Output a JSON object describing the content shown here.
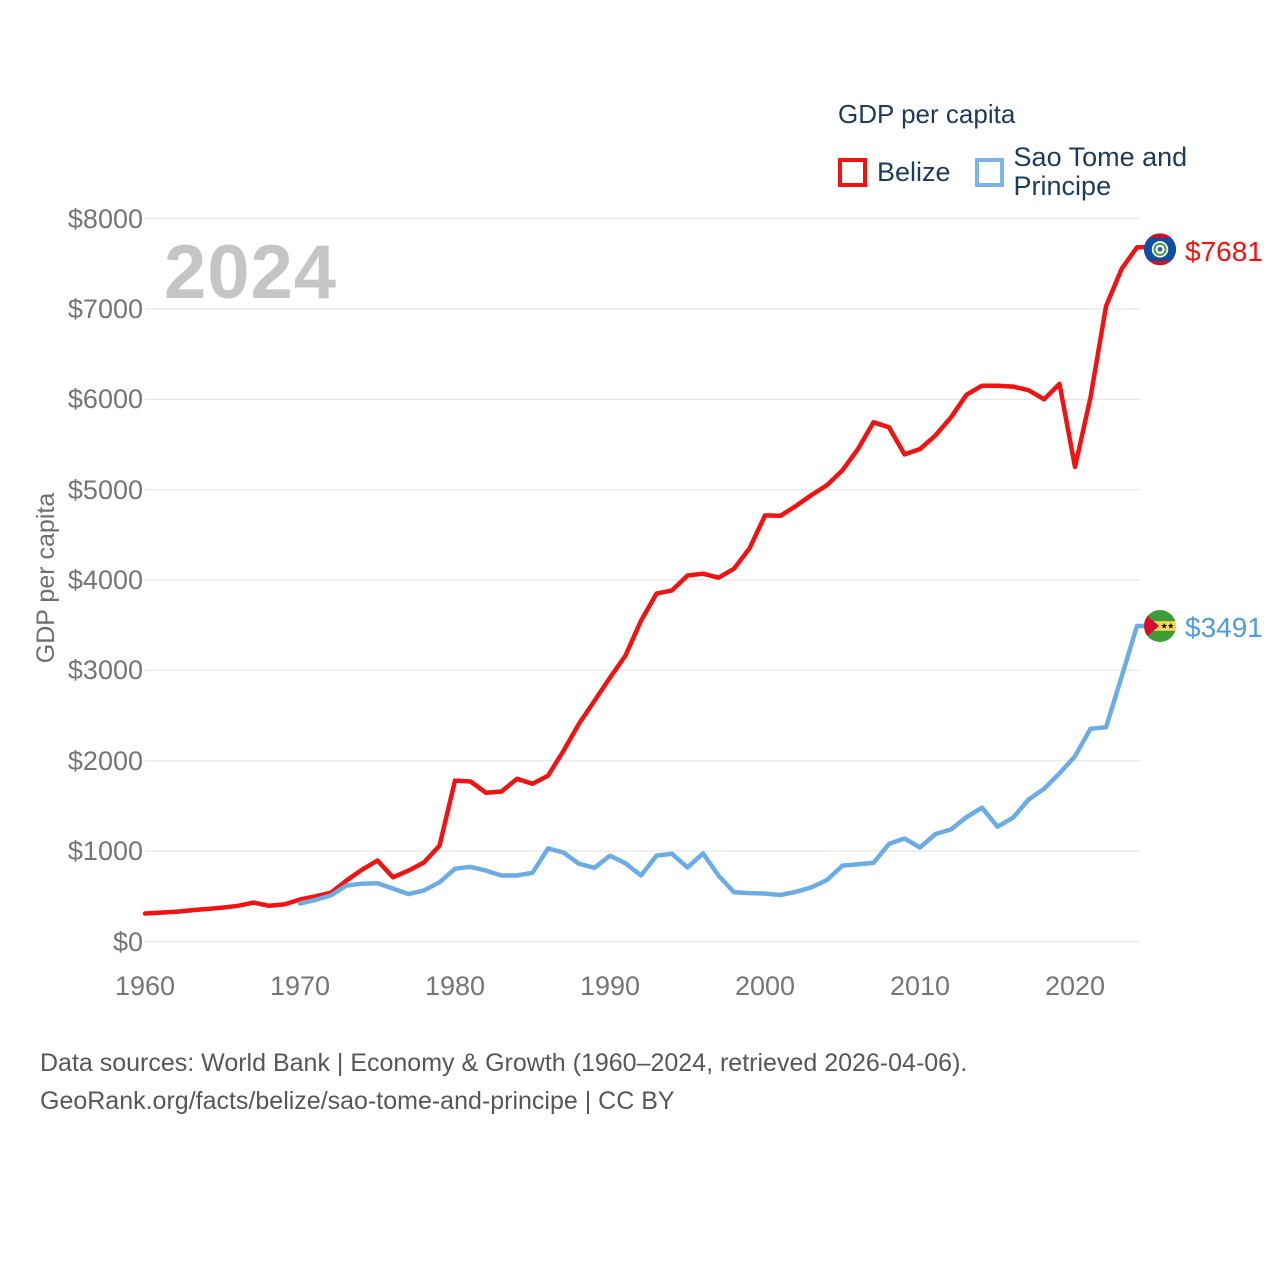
{
  "watermark": "2024",
  "legend": {
    "title": "GDP per capita",
    "items": [
      {
        "label": "Belize",
        "color": "#f31212"
      },
      {
        "label": "Sao Tome and Principe",
        "color": "#7db4e8"
      }
    ]
  },
  "y_axis": {
    "title": "GDP per capita"
  },
  "end_labels": [
    {
      "series": "Belize",
      "text": "$7681",
      "color": "#f31212"
    },
    {
      "series": "Sao Tome and Principe",
      "text": "$3491",
      "color": "#4f9bdb"
    }
  ],
  "footer": {
    "line1": "Data sources: World Bank | Economy & Growth (1960–2024, retrieved 2026-04-06).",
    "line2": "GeoRank.org/facts/belize/sao-tome-and-principe | CC BY"
  },
  "chart_data": {
    "type": "line",
    "title": "GDP per capita",
    "xlabel": "Year",
    "ylabel": "GDP per capita",
    "x_range": [
      1960,
      2024
    ],
    "ylim": [
      0,
      8000
    ],
    "grid": true,
    "legend_position": "top-right",
    "y_ticks": [
      {
        "label": "$0",
        "value": 0
      },
      {
        "label": "$1000",
        "value": 1000
      },
      {
        "label": "$2000",
        "value": 2000
      },
      {
        "label": "$3000",
        "value": 3000
      },
      {
        "label": "$4000",
        "value": 4000
      },
      {
        "label": "$5000",
        "value": 5000
      },
      {
        "label": "$6000",
        "value": 6000
      },
      {
        "label": "$7000",
        "value": 7000
      },
      {
        "label": "$8000",
        "value": 8000
      }
    ],
    "x_ticks": [
      {
        "label": "1960",
        "year": 1960
      },
      {
        "label": "1970",
        "year": 1970
      },
      {
        "label": "1980",
        "year": 1980
      },
      {
        "label": "1990",
        "year": 1990
      },
      {
        "label": "2000",
        "year": 2000
      },
      {
        "label": "2010",
        "year": 2010
      },
      {
        "label": "2020",
        "year": 2020
      }
    ],
    "series": [
      {
        "name": "Belize",
        "color": "#f31212",
        "start_year": 1960,
        "end_value_label": "$7681",
        "values": [
          310,
          320,
          330,
          345,
          360,
          375,
          395,
          430,
          395,
          410,
          465,
          500,
          540,
          675,
          795,
          895,
          710,
          785,
          875,
          1060,
          1780,
          1770,
          1645,
          1660,
          1800,
          1745,
          1835,
          2110,
          2410,
          2665,
          2920,
          3165,
          3550,
          3850,
          3885,
          4050,
          4070,
          4025,
          4125,
          4350,
          4715,
          4710,
          4820,
          4940,
          5050,
          5215,
          5450,
          5745,
          5690,
          5390,
          5450,
          5600,
          5800,
          6050,
          6150,
          6150,
          6140,
          6100,
          6000,
          6170,
          5250,
          6020,
          7030,
          7440,
          7681
        ]
      },
      {
        "name": "Sao Tome and Principe",
        "color": "#6cace4",
        "start_year": 1970,
        "end_value_label": "$3491",
        "values": [
          420,
          460,
          510,
          620,
          640,
          645,
          585,
          525,
          565,
          655,
          805,
          825,
          785,
          730,
          730,
          760,
          1030,
          985,
          860,
          815,
          950,
          865,
          730,
          950,
          970,
          820,
          975,
          730,
          545,
          535,
          530,
          515,
          550,
          600,
          680,
          840,
          855,
          870,
          1080,
          1140,
          1040,
          1190,
          1240,
          1375,
          1480,
          1270,
          1370,
          1570,
          1690,
          1860,
          2050,
          2355,
          2370,
          2925,
          3491
        ]
      }
    ]
  }
}
